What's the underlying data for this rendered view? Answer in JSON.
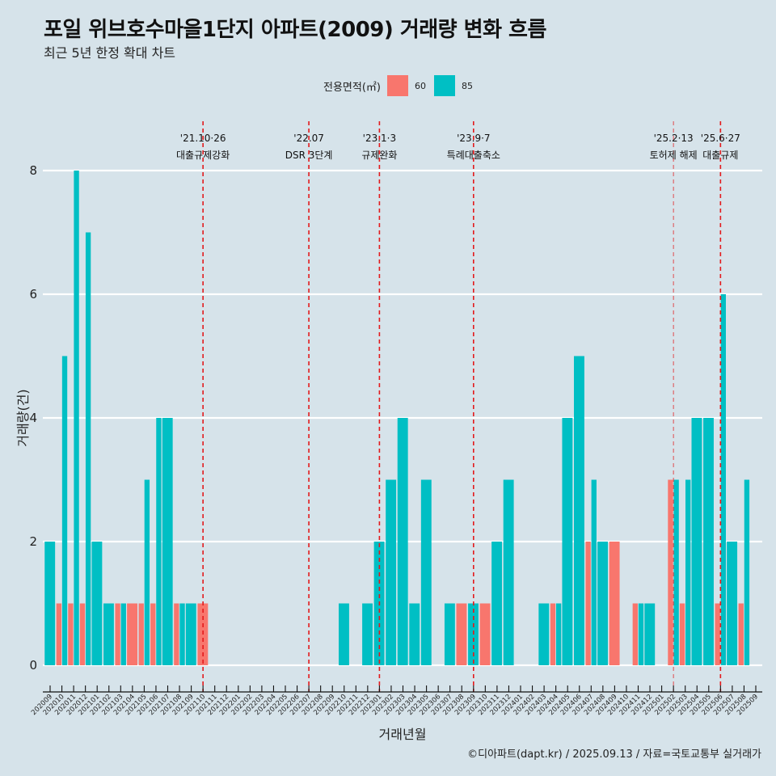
{
  "header": {
    "title": "포일 위브호수마을1단지 아파트(2009) 거래량 변화 흐름",
    "subtitle": "최근 5년 한정 확대 차트"
  },
  "legend": {
    "title": "전용면적(㎡)",
    "items": [
      {
        "label": "60",
        "color": "#f8766d"
      },
      {
        "label": "85",
        "color": "#00bfc4"
      }
    ]
  },
  "caption": "©디아파트(dapt.kr) / 2025.09.13 / 자료=국토교통부 실거래가",
  "chart_data": {
    "type": "bar",
    "stacking": "dodge",
    "title": "포일 위브호수마을1단지 아파트(2009) 거래량 변화 흐름",
    "xlabel": "거래년월",
    "ylabel": "거래량(건)",
    "ylim": [
      0,
      8
    ],
    "yticks": [
      0,
      2,
      4,
      6,
      8
    ],
    "grid": true,
    "legend_position": "top",
    "categories": [
      "202009",
      "202010",
      "202011",
      "202012",
      "202101",
      "202102",
      "202103",
      "202104",
      "202105",
      "202106",
      "202107",
      "202108",
      "202109",
      "202110",
      "202111",
      "202112",
      "202201",
      "202202",
      "202203",
      "202204",
      "202205",
      "202206",
      "202207",
      "202208",
      "202209",
      "202210",
      "202211",
      "202212",
      "202301",
      "202302",
      "202303",
      "202304",
      "202305",
      "202306",
      "202307",
      "202308",
      "202309",
      "202310",
      "202311",
      "202312",
      "202401",
      "202402",
      "202403",
      "202404",
      "202405",
      "202406",
      "202407",
      "202408",
      "202409",
      "202410",
      "202411",
      "202412",
      "202501",
      "202502",
      "202503",
      "202504",
      "202505",
      "202506",
      "202507",
      "202508",
      "202509"
    ],
    "series": [
      {
        "name": "60",
        "color": "#f8766d",
        "values": [
          0,
          1,
          1,
          1,
          0,
          0,
          1,
          1,
          1,
          1,
          0,
          1,
          0,
          1,
          0,
          0,
          0,
          0,
          0,
          0,
          0,
          0,
          0,
          0,
          0,
          0,
          0,
          0,
          0,
          0,
          0,
          0,
          0,
          0,
          0,
          1,
          0,
          1,
          0,
          0,
          0,
          0,
          0,
          1,
          0,
          0,
          2,
          0,
          2,
          0,
          1,
          0,
          0,
          3,
          1,
          0,
          0,
          1,
          0,
          1,
          0
        ]
      },
      {
        "name": "85",
        "color": "#00bfc4",
        "values": [
          2,
          5,
          8,
          7,
          2,
          1,
          1,
          0,
          3,
          4,
          4,
          1,
          1,
          0,
          0,
          0,
          0,
          0,
          0,
          0,
          0,
          0,
          0,
          0,
          0,
          1,
          0,
          1,
          2,
          3,
          4,
          1,
          3,
          0,
          1,
          0,
          1,
          0,
          2,
          3,
          0,
          0,
          1,
          1,
          4,
          5,
          3,
          2,
          0,
          0,
          1,
          1,
          0,
          3,
          3,
          4,
          4,
          6,
          2,
          3,
          0
        ]
      }
    ],
    "annotations": [
      {
        "month": "202110",
        "date": "'21.10·26",
        "label": "대출규제강화",
        "style": "bold"
      },
      {
        "month": "202207",
        "date": "'22.07",
        "label": "DSR 3단계",
        "style": "bold"
      },
      {
        "month": "202301",
        "date": "'23.1·3",
        "label": "규제완화",
        "style": "bold"
      },
      {
        "month": "202309",
        "date": "'23.9·7",
        "label": "특례대출축소",
        "style": "bold"
      },
      {
        "month": "202502",
        "date": "'25.2·13",
        "label": "토허제 해제",
        "style": "light"
      },
      {
        "month": "202506",
        "date": "'25.6·27",
        "label": "대출규제",
        "style": "bold"
      }
    ],
    "annotation_color": "#e31a1c"
  }
}
